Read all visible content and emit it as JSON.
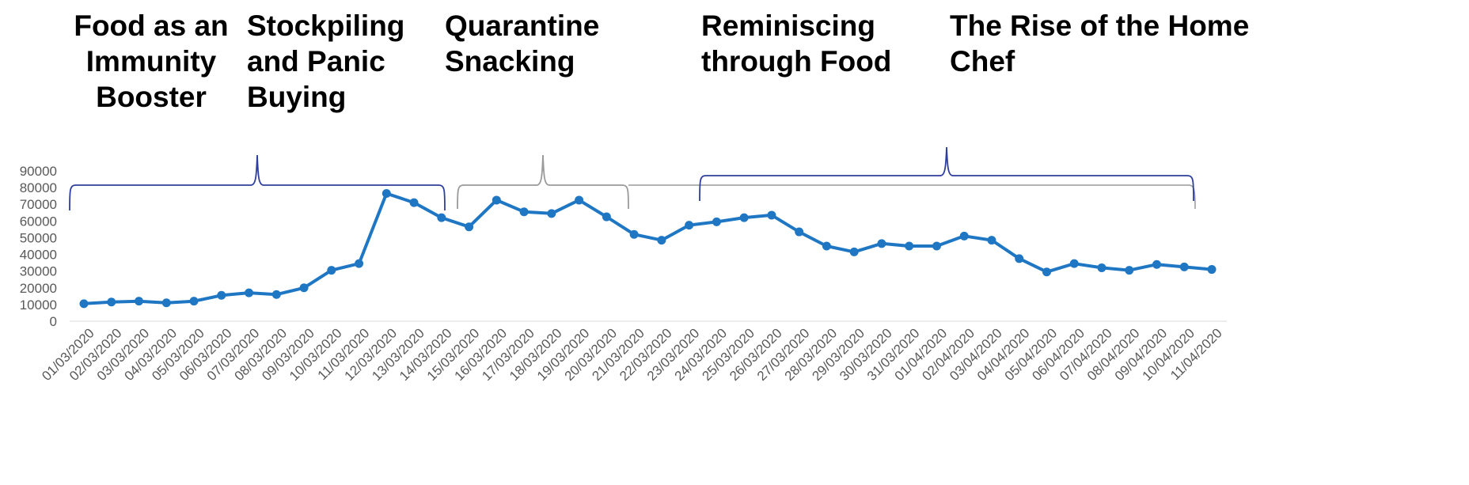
{
  "themes": [
    {
      "label": "Food as an Immunity Booster",
      "lines": [
        "Food as an",
        "Immunity",
        "Booster"
      ]
    },
    {
      "label": "Stockpiling and Panic Buying",
      "lines": [
        "Stockpiling",
        "and Panic",
        "Buying"
      ]
    },
    {
      "label": "Quarantine Snacking",
      "lines": [
        "Quarantine",
        "Snacking"
      ]
    },
    {
      "label": "Reminiscing through Food",
      "lines": [
        "Reminiscing",
        "through Food"
      ]
    },
    {
      "label": "The Rise of the Home Chef",
      "lines": [
        "The Rise of the Home",
        "Chef"
      ]
    }
  ],
  "colors": {
    "line": "#1F77C4",
    "brace_dark": "#2E3E9E",
    "brace_gray": "#9A9A9A",
    "axis_text": "#595959",
    "axis_line": "#D9D9D9"
  },
  "chart_data": {
    "type": "line",
    "x": [
      "01/03/2020",
      "02/03/2020",
      "03/03/2020",
      "04/03/2020",
      "05/03/2020",
      "06/03/2020",
      "07/03/2020",
      "08/03/2020",
      "09/03/2020",
      "10/03/2020",
      "11/03/2020",
      "12/03/2020",
      "13/03/2020",
      "14/03/2020",
      "15/03/2020",
      "16/03/2020",
      "17/03/2020",
      "18/03/2020",
      "19/03/2020",
      "20/03/2020",
      "21/03/2020",
      "22/03/2020",
      "23/03/2020",
      "24/03/2020",
      "25/03/2020",
      "26/03/2020",
      "27/03/2020",
      "28/03/2020",
      "29/03/2020",
      "30/03/2020",
      "31/03/2020",
      "01/04/2020",
      "02/04/2020",
      "03/04/2020",
      "04/04/2020",
      "05/04/2020",
      "06/04/2020",
      "07/04/2020",
      "08/04/2020",
      "09/04/2020",
      "10/04/2020",
      "11/04/2020"
    ],
    "series": [
      {
        "values": [
          10500,
          11500,
          12000,
          11000,
          12000,
          15500,
          17000,
          16000,
          20000,
          30500,
          34500,
          76500,
          71000,
          62000,
          56500,
          72500,
          65500,
          64500,
          72500,
          62500,
          52000,
          48500,
          57500,
          59500,
          62000,
          63500,
          53500,
          45000,
          41500,
          46500,
          45000,
          45000,
          51000,
          48500,
          37500,
          29500,
          34500,
          32000,
          30500,
          34000,
          32500,
          31000
        ]
      }
    ],
    "ylim": [
      0,
      90000
    ],
    "yticks": [
      "0",
      "10000",
      "20000",
      "30000",
      "40000",
      "50000",
      "60000",
      "70000",
      "80000",
      "90000"
    ],
    "brackets": [
      {
        "theme": "Food as an Immunity Booster",
        "from": "01/03/2020",
        "to": "14/03/2020",
        "color": "dark"
      },
      {
        "theme": "Quarantine Snacking",
        "from": "15/03/2020",
        "to": "11/04/2020",
        "color": "gray"
      },
      {
        "theme": "Reminiscing through Food",
        "from": "24/03/2020",
        "to": "11/04/2020",
        "color": "dark"
      }
    ]
  }
}
